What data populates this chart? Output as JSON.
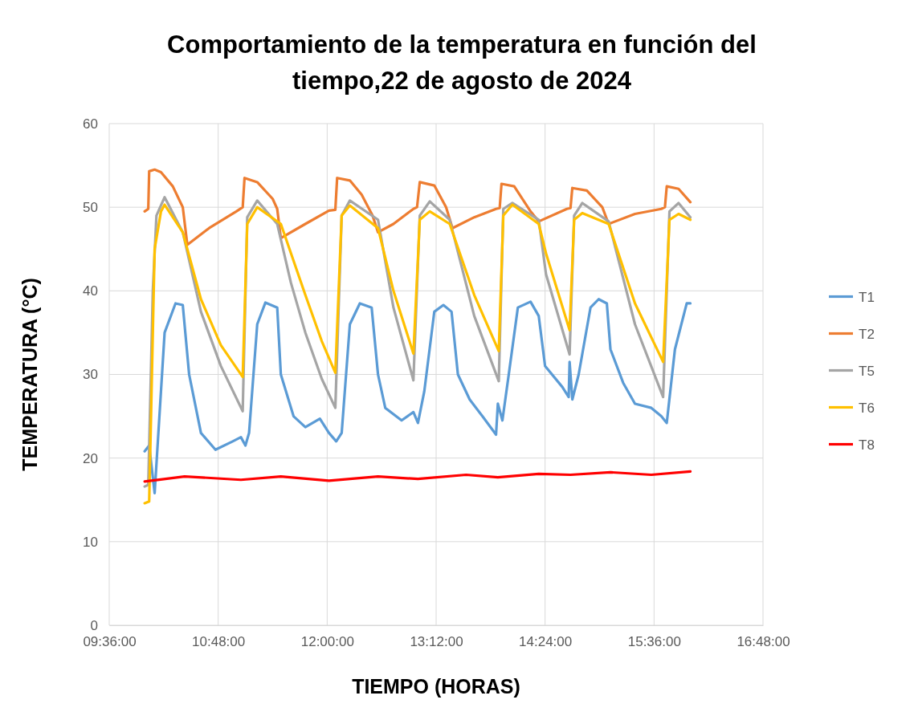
{
  "chart_data": {
    "type": "line",
    "title": "Comportamiento de la temperatura en función del tiempo,22 de agosto de 2024",
    "xlabel": "TIEMPO (HORAS)",
    "ylabel": "TEMPERATURA (°C)",
    "xlim": [
      9.6,
      16.8
    ],
    "xticks": [
      {
        "value": 9.6,
        "label": "09:36:00"
      },
      {
        "value": 10.8,
        "label": "10:48:00"
      },
      {
        "value": 12,
        "label": "12:00:00"
      },
      {
        "value": 13.2,
        "label": "13:12:00"
      },
      {
        "value": 14.4,
        "label": "14:24:00"
      },
      {
        "value": 15.6,
        "label": "15:36:00"
      },
      {
        "value": 16.8,
        "label": "16:48:00"
      }
    ],
    "ylim": [
      0,
      60
    ],
    "yticks": [
      0,
      10,
      20,
      30,
      40,
      50,
      60
    ],
    "grid": true,
    "legend": "right",
    "marker": "none",
    "line_style": "solid",
    "series": [
      {
        "name": "T1",
        "color": "#5b9bd5",
        "x": [
          9.99,
          10.04,
          10.1,
          10.21,
          10.33,
          10.41,
          10.48,
          10.61,
          10.77,
          10.96,
          11.05,
          11.1,
          11.14,
          11.23,
          11.32,
          11.45,
          11.49,
          11.63,
          11.76,
          11.92,
          12.02,
          12.1,
          12.16,
          12.25,
          12.36,
          12.49,
          12.56,
          12.64,
          12.82,
          12.95,
          13.0,
          13.07,
          13.18,
          13.28,
          13.37,
          13.44,
          13.57,
          13.71,
          13.86,
          13.88,
          13.93,
          14.0,
          14.1,
          14.24,
          14.33,
          14.4,
          14.59,
          14.66,
          14.67,
          14.7,
          14.77,
          14.9,
          14.99,
          15.08,
          15.12,
          15.26,
          15.39,
          15.57,
          15.68,
          15.74,
          15.83,
          15.96,
          16.0
        ],
        "values": [
          20.8,
          21.5,
          15.8,
          35,
          38.5,
          38.3,
          30,
          23,
          21,
          22,
          22.5,
          21.5,
          23,
          36,
          38.6,
          38,
          30,
          25,
          23.7,
          24.7,
          23,
          22,
          23,
          36,
          38.5,
          38,
          30,
          26,
          24.5,
          25.5,
          24.2,
          28,
          37.5,
          38.3,
          37.5,
          30,
          27,
          25,
          22.8,
          26.5,
          24.5,
          30,
          38,
          38.7,
          37,
          31,
          28.5,
          27.3,
          31.5,
          27,
          30,
          38,
          39,
          38.5,
          33,
          29,
          26.5,
          26,
          25,
          24.2,
          33,
          38.5,
          38.5
        ]
      },
      {
        "name": "T2",
        "color": "#ed7d31",
        "x": [
          9.99,
          10.03,
          10.04,
          10.1,
          10.17,
          10.3,
          10.41,
          10.46,
          10.7,
          11.0,
          11.07,
          11.09,
          11.23,
          11.4,
          11.45,
          11.49,
          11.76,
          12.02,
          12.09,
          12.11,
          12.25,
          12.38,
          12.5,
          12.56,
          12.73,
          12.95,
          12.99,
          13.02,
          13.18,
          13.31,
          13.38,
          13.62,
          13.86,
          13.9,
          13.92,
          14.06,
          14.24,
          14.33,
          14.64,
          14.68,
          14.7,
          14.86,
          15.03,
          15.1,
          15.39,
          15.68,
          15.72,
          15.74,
          15.87,
          16.0
        ],
        "values": [
          49.5,
          49.8,
          54.3,
          54.5,
          54.2,
          52.5,
          50,
          45.5,
          47.5,
          49.5,
          50,
          53.5,
          53,
          51,
          49.8,
          46.3,
          48,
          49.6,
          49.7,
          53.5,
          53.2,
          51.5,
          49,
          47,
          48,
          49.8,
          50,
          53,
          52.6,
          50,
          47.5,
          48.8,
          49.8,
          49.9,
          52.8,
          52.5,
          49.5,
          48.3,
          49.8,
          49.9,
          52.3,
          52,
          50,
          48,
          49.2,
          49.8,
          50,
          52.5,
          52.2,
          50.6
        ]
      },
      {
        "name": "T5",
        "color": "#a5a5a5",
        "x": [
          9.99,
          10.03,
          10.08,
          10.12,
          10.21,
          10.41,
          10.61,
          10.83,
          11.07,
          11.12,
          11.23,
          11.45,
          11.6,
          11.76,
          11.94,
          12.09,
          12.16,
          12.25,
          12.56,
          12.73,
          12.95,
          13.02,
          13.13,
          13.35,
          13.62,
          13.89,
          13.94,
          14.04,
          14.33,
          14.41,
          14.67,
          14.72,
          14.81,
          15.1,
          15.39,
          15.7,
          15.77,
          15.87,
          16.0
        ],
        "values": [
          16.6,
          16.8,
          40,
          49,
          51.2,
          47,
          37.5,
          31,
          25.6,
          48.8,
          50.8,
          48,
          41,
          35,
          29.5,
          26,
          49,
          50.8,
          48.5,
          38,
          29.3,
          49,
          50.7,
          48.5,
          37,
          29.2,
          49.8,
          50.5,
          48.5,
          42,
          32.4,
          49,
          50.5,
          48.3,
          36,
          27.3,
          49.5,
          50.5,
          48.8
        ]
      },
      {
        "name": "T6",
        "color": "#ffc000",
        "x": [
          9.99,
          10.04,
          10.1,
          10.17,
          10.21,
          10.41,
          10.61,
          10.83,
          11.07,
          11.12,
          11.23,
          11.49,
          11.76,
          11.94,
          12.09,
          12.16,
          12.25,
          12.56,
          12.73,
          12.95,
          13.02,
          13.13,
          13.35,
          13.62,
          13.89,
          13.94,
          14.04,
          14.33,
          14.41,
          14.67,
          14.72,
          14.81,
          15.1,
          15.39,
          15.7,
          15.77,
          15.87,
          16.0
        ],
        "values": [
          14.6,
          14.8,
          45,
          49.5,
          50.3,
          47,
          39,
          33.5,
          29.7,
          48,
          50,
          48,
          39.5,
          34,
          30.2,
          49,
          50.2,
          47.5,
          40,
          32.5,
          48.5,
          49.5,
          48,
          39.5,
          32.8,
          49,
          50.3,
          48,
          44.5,
          35.3,
          48.5,
          49.3,
          48,
          38.5,
          31.5,
          48.5,
          49.2,
          48.5
        ]
      },
      {
        "name": "T8",
        "color": "#ff0000",
        "x": [
          9.99,
          10.43,
          11.05,
          11.49,
          12.02,
          12.56,
          13.0,
          13.53,
          13.88,
          14.33,
          14.68,
          15.12,
          15.57,
          16.0
        ],
        "values": [
          17.2,
          17.8,
          17.4,
          17.8,
          17.3,
          17.8,
          17.5,
          18,
          17.7,
          18.1,
          18,
          18.3,
          18,
          18.4
        ]
      }
    ]
  }
}
